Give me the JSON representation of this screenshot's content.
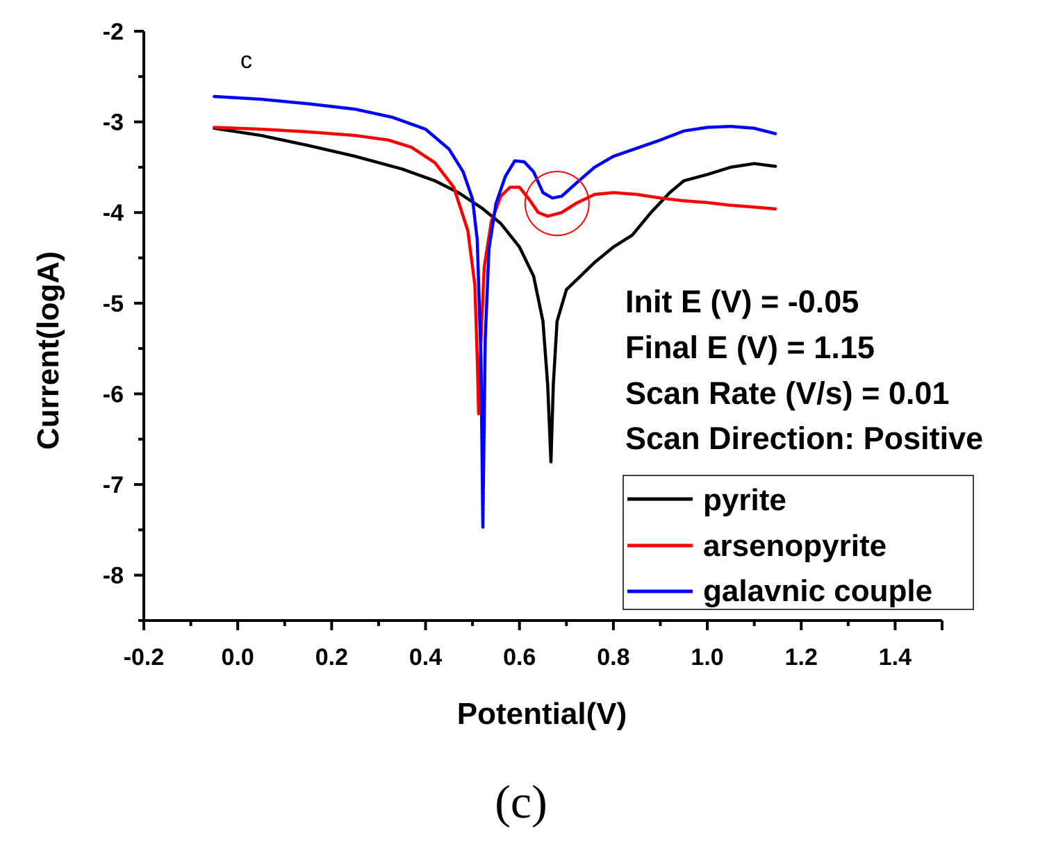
{
  "chart_data": {
    "type": "line",
    "panel_label": "c",
    "caption": "(c)",
    "xlabel": "Potential(V)",
    "ylabel": "Current(logA)",
    "xlim": [
      -0.2,
      1.5
    ],
    "ylim": [
      -8.5,
      -2
    ],
    "x_ticks": [
      -0.2,
      0.0,
      0.2,
      0.4,
      0.6,
      0.8,
      1.0,
      1.2,
      1.4
    ],
    "x_tick_labels": [
      "-0.2",
      "0.0",
      "0.2",
      "0.4",
      "0.6",
      "0.8",
      "1.0",
      "1.2",
      "1.4"
    ],
    "y_ticks": [
      -2,
      -3,
      -4,
      -5,
      -6,
      -7,
      -8
    ],
    "y_tick_labels": [
      "-2",
      "-3",
      "-4",
      "-5",
      "-6",
      "-7",
      "-8"
    ],
    "annotations": [
      "Init E (V) = -0.05",
      "Final E (V) = 1.15",
      "Scan Rate (V/s) = 0.01",
      "Scan Direction: Positive"
    ],
    "highlight_circle": {
      "x": 0.68,
      "y": -3.9,
      "color": "#ff0000"
    },
    "legend": [
      "pyrite",
      "arsenopyrite",
      "galavnic couple"
    ],
    "series": [
      {
        "name": "pyrite",
        "color": "#000000",
        "points": [
          [
            -0.05,
            -3.07
          ],
          [
            0.05,
            -3.15
          ],
          [
            0.15,
            -3.26
          ],
          [
            0.25,
            -3.38
          ],
          [
            0.35,
            -3.52
          ],
          [
            0.42,
            -3.65
          ],
          [
            0.47,
            -3.78
          ],
          [
            0.52,
            -3.95
          ],
          [
            0.56,
            -4.12
          ],
          [
            0.6,
            -4.38
          ],
          [
            0.63,
            -4.7
          ],
          [
            0.65,
            -5.2
          ],
          [
            0.66,
            -5.9
          ],
          [
            0.667,
            -6.75
          ],
          [
            0.672,
            -5.9
          ],
          [
            0.68,
            -5.2
          ],
          [
            0.7,
            -4.85
          ],
          [
            0.73,
            -4.7
          ],
          [
            0.76,
            -4.55
          ],
          [
            0.8,
            -4.38
          ],
          [
            0.84,
            -4.25
          ],
          [
            0.88,
            -4.0
          ],
          [
            0.92,
            -3.78
          ],
          [
            0.95,
            -3.65
          ],
          [
            1.0,
            -3.58
          ],
          [
            1.05,
            -3.5
          ],
          [
            1.1,
            -3.46
          ],
          [
            1.145,
            -3.49
          ]
        ]
      },
      {
        "name": "arsenopyrite",
        "color": "#ff0000",
        "points": [
          [
            -0.05,
            -3.06
          ],
          [
            0.05,
            -3.08
          ],
          [
            0.15,
            -3.11
          ],
          [
            0.25,
            -3.15
          ],
          [
            0.32,
            -3.2
          ],
          [
            0.37,
            -3.28
          ],
          [
            0.42,
            -3.45
          ],
          [
            0.46,
            -3.72
          ],
          [
            0.49,
            -4.2
          ],
          [
            0.505,
            -4.8
          ],
          [
            0.51,
            -5.6
          ],
          [
            0.513,
            -6.22
          ],
          [
            0.518,
            -5.4
          ],
          [
            0.525,
            -4.6
          ],
          [
            0.54,
            -4.1
          ],
          [
            0.56,
            -3.82
          ],
          [
            0.58,
            -3.72
          ],
          [
            0.6,
            -3.72
          ],
          [
            0.62,
            -3.85
          ],
          [
            0.64,
            -4.0
          ],
          [
            0.66,
            -4.04
          ],
          [
            0.69,
            -4.0
          ],
          [
            0.72,
            -3.9
          ],
          [
            0.76,
            -3.8
          ],
          [
            0.8,
            -3.78
          ],
          [
            0.85,
            -3.8
          ],
          [
            0.9,
            -3.84
          ],
          [
            0.95,
            -3.87
          ],
          [
            1.0,
            -3.89
          ],
          [
            1.05,
            -3.92
          ],
          [
            1.1,
            -3.94
          ],
          [
            1.145,
            -3.96
          ]
        ]
      },
      {
        "name": "galavnic couple",
        "color": "#0000ff",
        "points": [
          [
            -0.05,
            -2.72
          ],
          [
            0.05,
            -2.75
          ],
          [
            0.15,
            -2.8
          ],
          [
            0.25,
            -2.86
          ],
          [
            0.33,
            -2.95
          ],
          [
            0.4,
            -3.08
          ],
          [
            0.45,
            -3.3
          ],
          [
            0.48,
            -3.55
          ],
          [
            0.5,
            -3.85
          ],
          [
            0.51,
            -4.3
          ],
          [
            0.518,
            -5.6
          ],
          [
            0.522,
            -7.47
          ],
          [
            0.527,
            -5.4
          ],
          [
            0.535,
            -4.4
          ],
          [
            0.55,
            -3.9
          ],
          [
            0.57,
            -3.6
          ],
          [
            0.59,
            -3.43
          ],
          [
            0.61,
            -3.44
          ],
          [
            0.63,
            -3.55
          ],
          [
            0.65,
            -3.78
          ],
          [
            0.67,
            -3.84
          ],
          [
            0.69,
            -3.82
          ],
          [
            0.72,
            -3.68
          ],
          [
            0.76,
            -3.5
          ],
          [
            0.8,
            -3.38
          ],
          [
            0.85,
            -3.29
          ],
          [
            0.9,
            -3.2
          ],
          [
            0.95,
            -3.1
          ],
          [
            1.0,
            -3.06
          ],
          [
            1.05,
            -3.05
          ],
          [
            1.1,
            -3.07
          ],
          [
            1.145,
            -3.13
          ]
        ]
      }
    ]
  }
}
